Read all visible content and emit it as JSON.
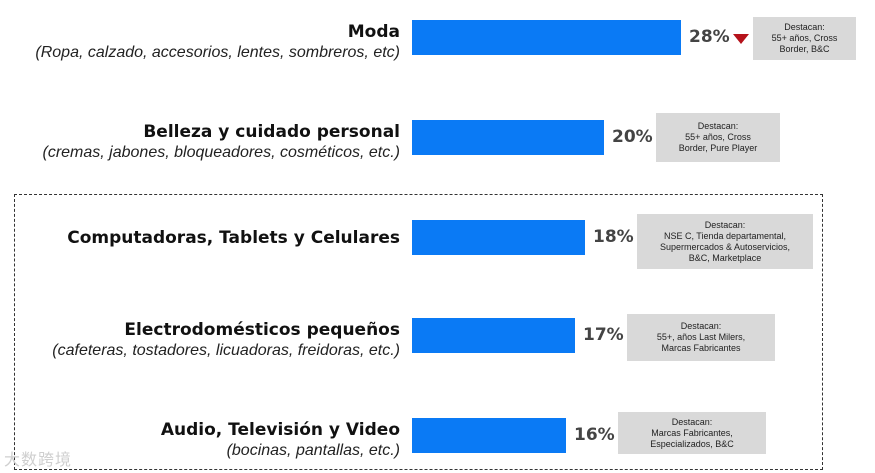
{
  "chart_data": {
    "type": "bar",
    "orientation": "horizontal",
    "unit": "%",
    "categories": [
      {
        "title": "Moda",
        "subtitle": "(Ropa, calzado, accesorios, lentes, sombreros, etc)"
      },
      {
        "title": "Belleza y cuidado personal",
        "subtitle": "(cremas, jabones, bloqueadores, cosméticos, etc.)"
      },
      {
        "title": "Computadoras, Tablets y Celulares",
        "subtitle": ""
      },
      {
        "title": "Electrodomésticos pequeños",
        "subtitle": "(cafeteras, tostadores, licuadoras, freidoras, etc.)"
      },
      {
        "title": "Audio, Televisión y Video",
        "subtitle": "(bocinas, pantallas, etc.)"
      }
    ],
    "values": [
      28,
      20,
      18,
      17,
      16
    ],
    "value_labels": [
      "28%",
      "20%",
      "18%",
      "17%",
      "16%"
    ],
    "trend": [
      "down",
      null,
      null,
      null,
      null
    ],
    "notes": [
      [
        "Destacan:",
        "55+ años, Cross",
        "Border, B&C"
      ],
      [
        "Destacan:",
        "55+ años, Cross",
        "Border, Pure Player"
      ],
      [
        "Destacan:",
        "NSE C, Tienda departamental,",
        "Supermercados & Autoservicios,",
        "B&C, Marketplace"
      ],
      [
        "Destacan:",
        "55+, años Last Milers,",
        "Marcas Fabricantes"
      ],
      [
        "Destacan:",
        "Marcas Fabricantes,",
        "Especializados, B&C"
      ]
    ],
    "bar_color": "#0a7af5",
    "trend_color": "#b5121b",
    "note_background": "#d9d9d9",
    "highlight_group": [
      2,
      3,
      4
    ],
    "xlim": [
      0,
      28
    ]
  },
  "watermark": "大数跨境"
}
